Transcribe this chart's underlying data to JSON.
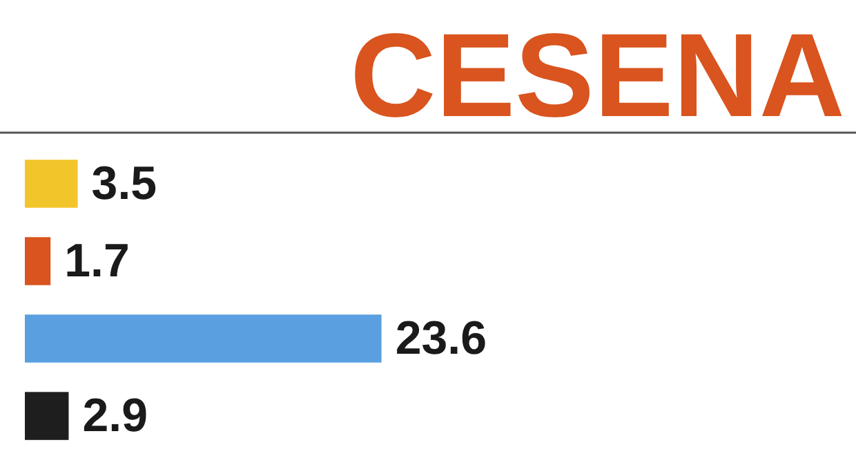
{
  "chart_data": {
    "type": "bar",
    "orientation": "horizontal",
    "title": "CESENA",
    "categories": [
      null,
      null,
      null,
      null
    ],
    "values": [
      3.5,
      1.7,
      23.6,
      2.9
    ],
    "colors": [
      "#f2c52a",
      "#d9541e",
      "#5aa0e0",
      "#1e1e1e"
    ],
    "xlim": [
      0,
      55
    ],
    "data_labels": true
  }
}
